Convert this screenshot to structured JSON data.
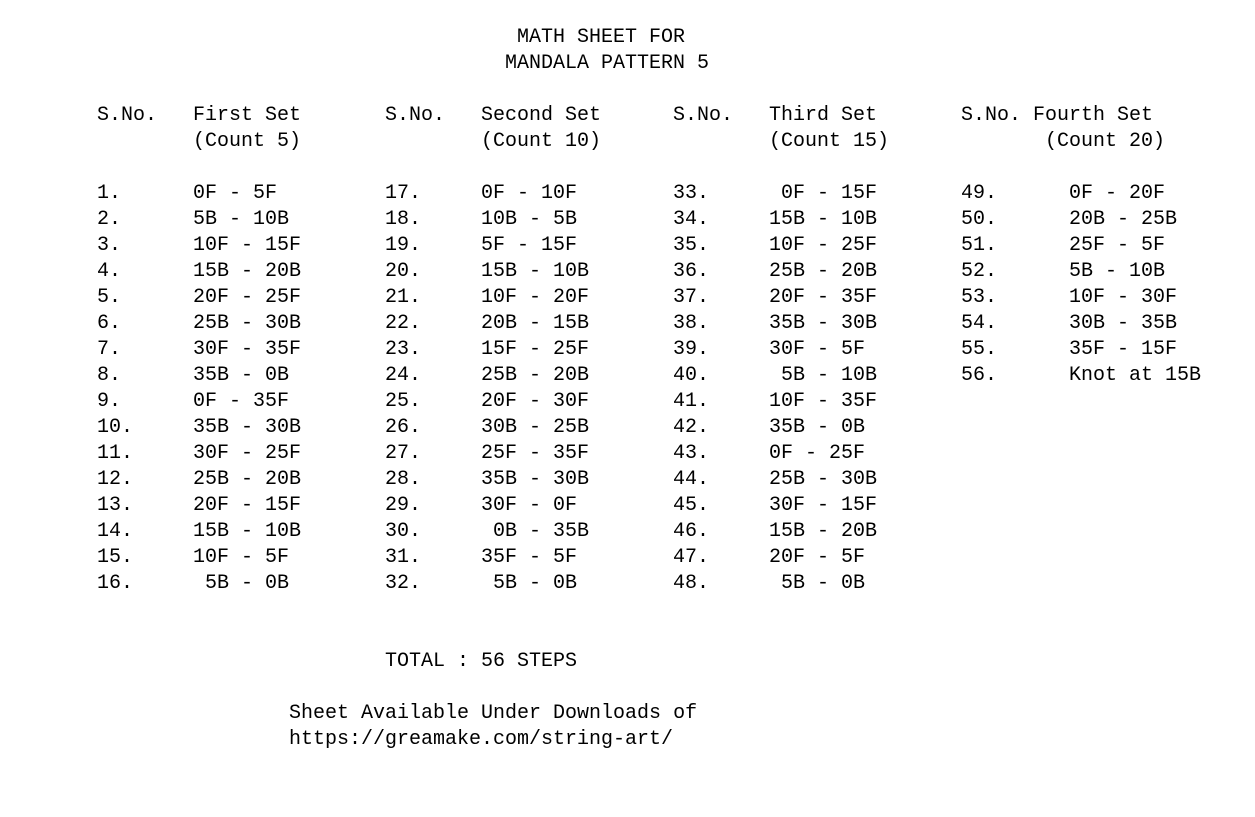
{
  "title": [
    "MATH SHEET FOR",
    "MANDALA PATTERN 5"
  ],
  "columns": [
    {
      "sno_label": "S.No.",
      "set_label": "First Set",
      "count_label": "(Count 5)",
      "rows": [
        [
          "1.",
          "0F - 5F"
        ],
        [
          "2.",
          "5B - 10B"
        ],
        [
          "3.",
          "10F - 15F"
        ],
        [
          "4.",
          "15B - 20B"
        ],
        [
          "5.",
          "20F - 25F"
        ],
        [
          "6.",
          "25B - 30B"
        ],
        [
          "7.",
          "30F - 35F"
        ],
        [
          "8.",
          "35B - 0B"
        ],
        [
          "9.",
          "0F - 35F"
        ],
        [
          "10.",
          "35B - 30B"
        ],
        [
          "11.",
          "30F - 25F"
        ],
        [
          "12.",
          "25B - 20B"
        ],
        [
          "13.",
          "20F - 15F"
        ],
        [
          "14.",
          "15B - 10B"
        ],
        [
          "15.",
          "10F - 5F"
        ],
        [
          "16.",
          " 5B - 0B"
        ]
      ]
    },
    {
      "sno_label": "S.No.",
      "set_label": "Second Set",
      "count_label": "(Count 10)",
      "rows": [
        [
          "17.",
          "0F - 10F"
        ],
        [
          "18.",
          "10B - 5B"
        ],
        [
          "19.",
          "5F - 15F"
        ],
        [
          "20.",
          "15B - 10B"
        ],
        [
          "21.",
          "10F - 20F"
        ],
        [
          "22.",
          "20B - 15B"
        ],
        [
          "23.",
          "15F - 25F"
        ],
        [
          "24.",
          "25B - 20B"
        ],
        [
          "25.",
          "20F - 30F"
        ],
        [
          "26.",
          "30B - 25B"
        ],
        [
          "27.",
          "25F - 35F"
        ],
        [
          "28.",
          "35B - 30B"
        ],
        [
          "29.",
          "30F - 0F"
        ],
        [
          "30.",
          " 0B - 35B"
        ],
        [
          "31.",
          "35F - 5F"
        ],
        [
          "32.",
          " 5B - 0B"
        ]
      ]
    },
    {
      "sno_label": "S.No.",
      "set_label": "Third Set",
      "count_label": "(Count 15)",
      "rows": [
        [
          "33.",
          " 0F - 15F"
        ],
        [
          "34.",
          "15B - 10B"
        ],
        [
          "35.",
          "10F - 25F"
        ],
        [
          "36.",
          "25B - 20B"
        ],
        [
          "37.",
          "20F - 35F"
        ],
        [
          "38.",
          "35B - 30B"
        ],
        [
          "39.",
          "30F - 5F"
        ],
        [
          "40.",
          " 5B - 10B"
        ],
        [
          "41.",
          "10F - 35F"
        ],
        [
          "42.",
          "35B - 0B"
        ],
        [
          "43.",
          "0F - 25F"
        ],
        [
          "44.",
          "25B - 30B"
        ],
        [
          "45.",
          "30F - 15F"
        ],
        [
          "46.",
          "15B - 20B"
        ],
        [
          "47.",
          "20F - 5F"
        ],
        [
          "48.",
          " 5B - 0B"
        ]
      ]
    },
    {
      "sno_label": "S.No. Fourth Set",
      "set_label": "",
      "count_label": "       (Count 20)",
      "rows": [
        [
          "49.",
          " 0F - 20F"
        ],
        [
          "50.",
          " 20B - 25B"
        ],
        [
          "51.",
          " 25F - 5F"
        ],
        [
          "52.",
          " 5B - 10B"
        ],
        [
          "53.",
          " 10F - 30F"
        ],
        [
          "54.",
          " 30B - 35B"
        ],
        [
          "55.",
          " 35F - 15F"
        ],
        [
          "56.",
          " Knot at 15B"
        ]
      ]
    }
  ],
  "total": "TOTAL : 56 STEPS",
  "footer": [
    "Sheet Available Under Downloads of",
    "https://greamake.com/string-art/"
  ]
}
